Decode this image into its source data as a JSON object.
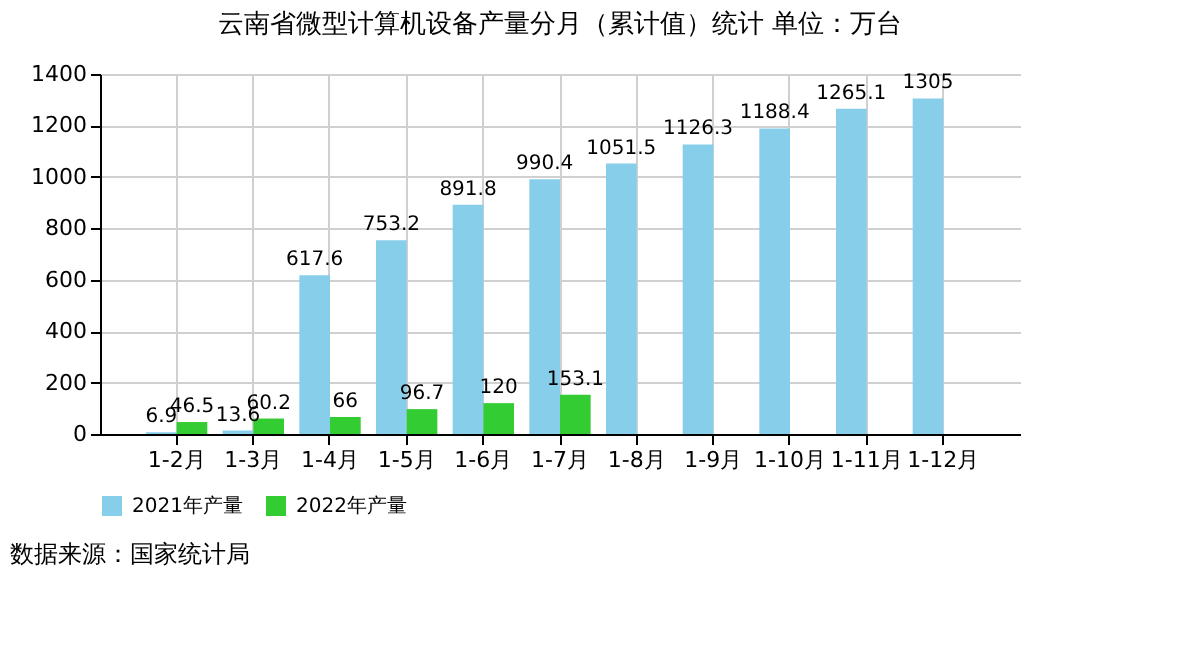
{
  "chart_data": {
    "type": "bar",
    "title": "云南省微型计算机设备产量分月（累计值）统计  单位：万台",
    "categories": [
      "1-2月",
      "1-3月",
      "1-4月",
      "1-5月",
      "1-6月",
      "1-7月",
      "1-8月",
      "1-9月",
      "1-10月",
      "1-11月",
      "1-12月"
    ],
    "series": [
      {
        "name": "2021年产量",
        "color": "#87ceeb",
        "values": [
          6.9,
          13.6,
          617.6,
          753.2,
          891.8,
          990.4,
          1051.5,
          1126.3,
          1188.4,
          1265.1,
          1305
        ]
      },
      {
        "name": "2022年产量",
        "color": "#33cc33",
        "values": [
          46.5,
          60.2,
          66,
          96.7,
          120,
          153.1,
          null,
          null,
          null,
          null,
          null
        ]
      }
    ],
    "ylim": [
      0,
      1400
    ],
    "yticks": [
      0,
      200,
      400,
      600,
      800,
      1000,
      1200,
      1400
    ],
    "grid": true,
    "legend": "bottom",
    "data_labels": true,
    "annotations": [
      "数据来源：国家统计局"
    ]
  }
}
